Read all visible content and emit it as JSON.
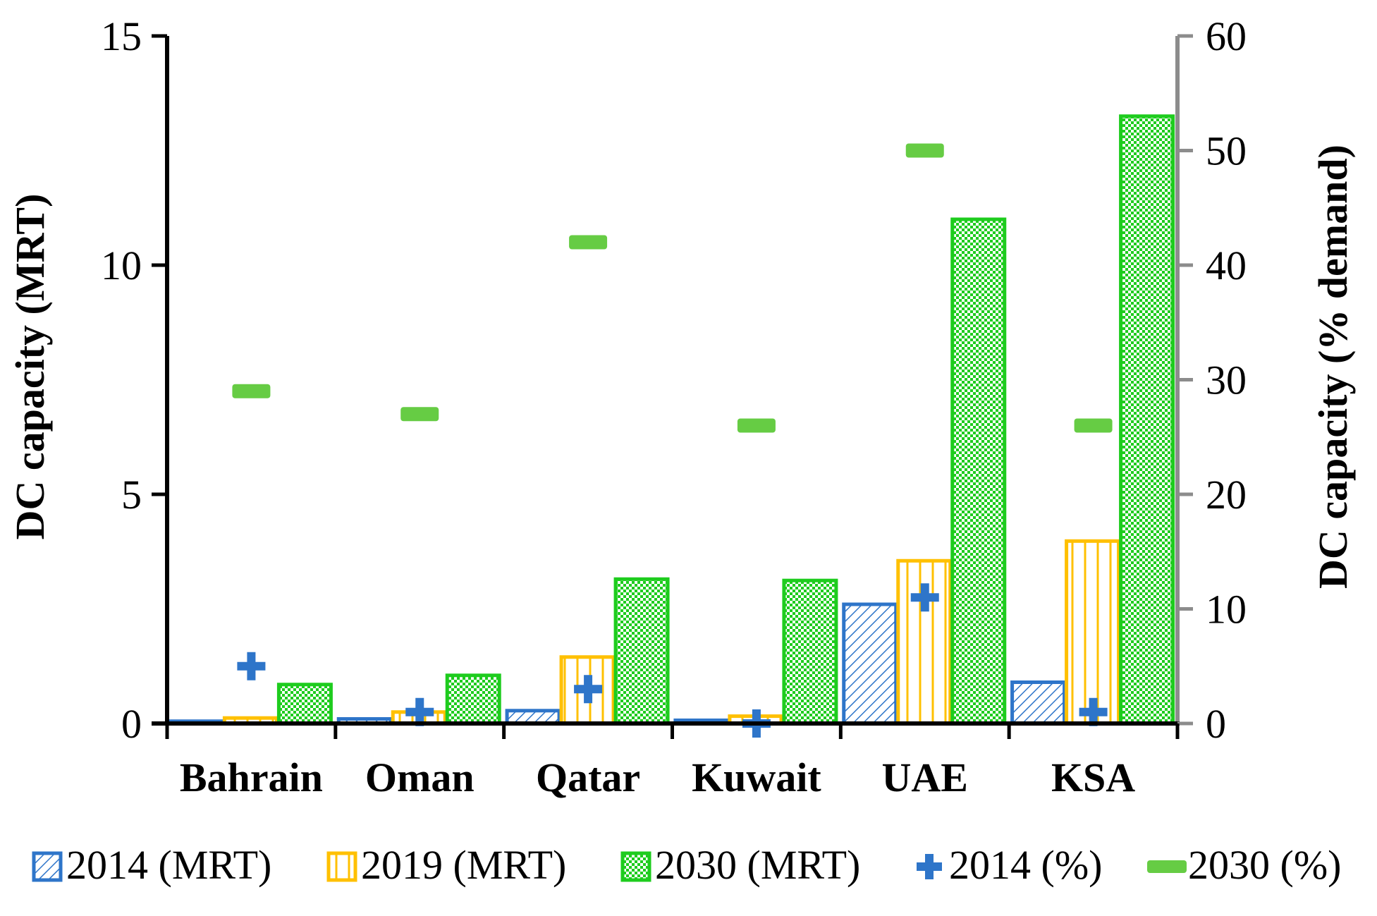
{
  "chart_data": {
    "type": "bar",
    "title": "",
    "categories": [
      "Bahrain",
      "Oman",
      "Qatar",
      "Kuwait",
      "UAE",
      "KSA"
    ],
    "ylabel": "DC capacity (MRT)",
    "ylabel_right": "DC capacity (% demand)",
    "ylim": [
      0,
      15
    ],
    "ylim_right": [
      0,
      60
    ],
    "yticks": [
      "0",
      "5",
      "10",
      "15"
    ],
    "yticks_right": [
      "0",
      "10",
      "20",
      "30",
      "40",
      "50",
      "60"
    ],
    "grid": false,
    "legend_position": "bottom",
    "series": [
      {
        "name": "2014 (MRT)",
        "axis": "left",
        "kind": "bar",
        "color": "#2E75C9",
        "pattern": "diagonal",
        "values": [
          0.05,
          0.1,
          0.28,
          0.07,
          2.6,
          0.9
        ]
      },
      {
        "name": "2019 (MRT)",
        "axis": "left",
        "kind": "bar",
        "color": "#FFC000",
        "pattern": "vertical",
        "values": [
          0.12,
          0.25,
          1.45,
          0.16,
          3.55,
          3.98
        ]
      },
      {
        "name": "2030 (MRT)",
        "axis": "left",
        "kind": "bar",
        "color": "#1ECC1E",
        "pattern": "checker",
        "values": [
          0.85,
          1.05,
          3.15,
          3.12,
          11.0,
          13.25
        ]
      },
      {
        "name": "2014 (%)",
        "axis": "right",
        "kind": "marker",
        "marker": "plus",
        "color": "#2E75C9",
        "values": [
          5,
          1,
          3,
          0,
          11,
          1
        ]
      },
      {
        "name": "2030 (%)",
        "axis": "right",
        "kind": "marker",
        "marker": "dash",
        "color": "#66CC44",
        "values": [
          29,
          27,
          42,
          26,
          50,
          26
        ]
      }
    ]
  }
}
